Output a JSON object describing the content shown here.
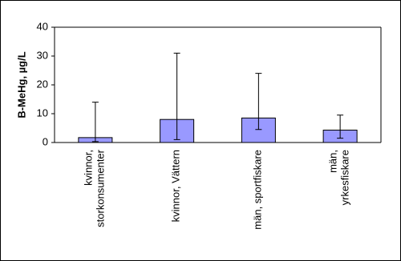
{
  "chart_data": {
    "type": "bar",
    "y_label": "B-MeHg, µg/L",
    "categories": [
      "kvinnor,\nstorkonsumenter",
      "kvinnor, Vättern",
      "män, sportfiskare",
      "män,\nyrkesfiskare"
    ],
    "values": [
      1.7,
      8,
      8.5,
      4.3
    ],
    "lower": [
      0.3,
      1,
      4.5,
      1.5
    ],
    "upper": [
      14,
      31,
      24,
      9.5
    ],
    "color": "#9999ff",
    "ylim": [
      0,
      40
    ],
    "yticks": [
      0,
      10,
      20,
      30,
      40
    ],
    "grid": false
  }
}
